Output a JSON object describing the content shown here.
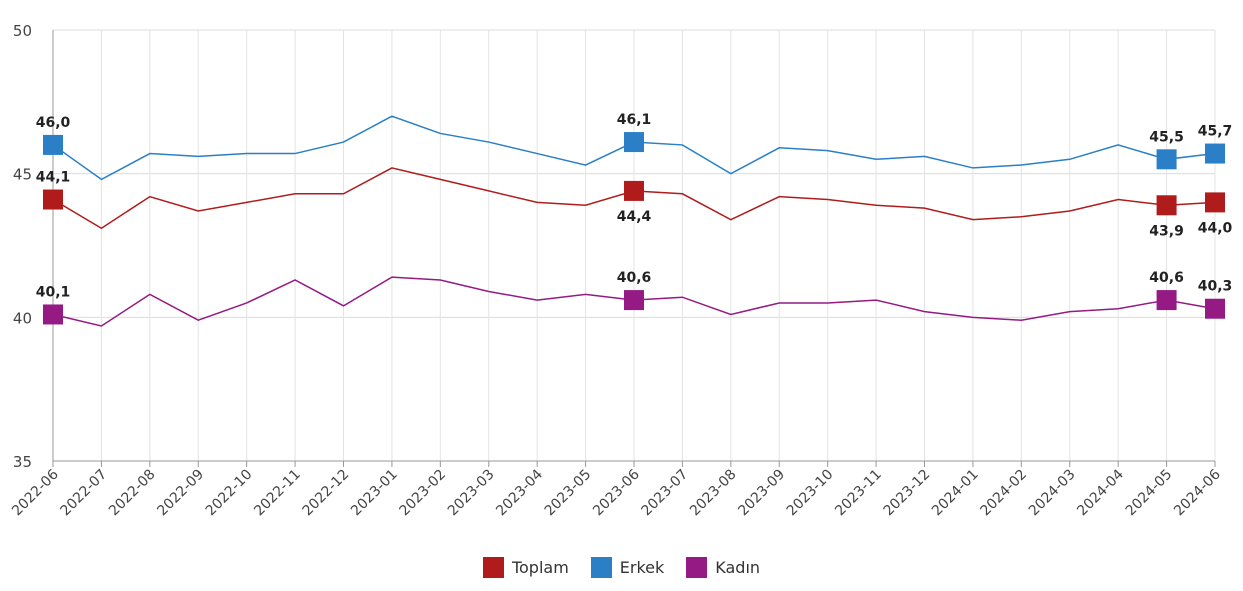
{
  "chart_data": {
    "type": "line",
    "title": "",
    "xlabel": "",
    "ylabel": "",
    "ylim": [
      35,
      50
    ],
    "yticks": [
      35,
      40,
      45,
      50
    ],
    "grid": true,
    "legend_position": "bottom-center",
    "categories": [
      "2022-06",
      "2022-07",
      "2022-08",
      "2022-09",
      "2022-10",
      "2022-11",
      "2022-12",
      "2023-01",
      "2023-02",
      "2023-03",
      "2023-04",
      "2023-05",
      "2023-06",
      "2023-07",
      "2023-08",
      "2023-09",
      "2023-10",
      "2023-11",
      "2023-12",
      "2024-01",
      "2024-02",
      "2024-03",
      "2024-04",
      "2024-05",
      "2024-06"
    ],
    "labeled_indices": [
      0,
      12,
      23,
      24
    ],
    "series": [
      {
        "name": "Toplam",
        "color": "#b01c1c",
        "values": [
          44.1,
          43.1,
          44.2,
          43.7,
          44.0,
          44.3,
          44.3,
          45.2,
          44.8,
          44.4,
          44.0,
          43.9,
          44.4,
          44.3,
          43.4,
          44.2,
          44.1,
          43.9,
          43.8,
          43.4,
          43.5,
          43.7,
          44.1,
          43.9,
          44.0
        ],
        "labels": [
          "44,1",
          "44,4",
          "43,9",
          "44,0"
        ]
      },
      {
        "name": "Erkek",
        "color": "#2a7fc6",
        "values": [
          46.0,
          44.8,
          45.7,
          45.6,
          45.7,
          45.7,
          46.1,
          47.0,
          46.4,
          46.1,
          45.7,
          45.3,
          46.1,
          46.0,
          45.0,
          45.9,
          45.8,
          45.5,
          45.6,
          45.2,
          45.3,
          45.5,
          46.0,
          45.5,
          45.7
        ],
        "labels": [
          "46,0",
          "46,1",
          "45,5",
          "45,7"
        ]
      },
      {
        "name": "Kadın",
        "color": "#951a84",
        "values": [
          40.1,
          39.7,
          40.8,
          39.9,
          40.5,
          41.3,
          40.4,
          41.4,
          41.3,
          40.9,
          40.6,
          40.8,
          40.6,
          40.7,
          40.1,
          40.5,
          40.5,
          40.6,
          40.2,
          40.0,
          39.9,
          40.2,
          40.3,
          40.6,
          40.3
        ],
        "labels": [
          "40,1",
          "40,6",
          "40,6",
          "40,3"
        ]
      }
    ]
  }
}
